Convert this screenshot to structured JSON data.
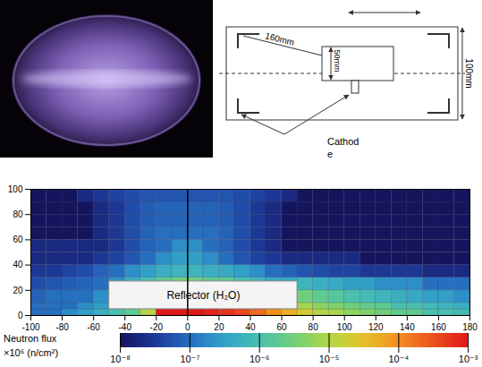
{
  "diagram": {
    "diagonal_label": "160mm",
    "inner_height_label": "50mm",
    "outer_height_label": "100mm",
    "cathode_label": [
      "Cathod",
      "e"
    ]
  },
  "chart_data": {
    "type": "heatmap",
    "xlim": [
      -100,
      180
    ],
    "ylim": [
      0,
      100
    ],
    "xticks": [
      -100,
      -80,
      -60,
      -40,
      -20,
      0,
      20,
      40,
      60,
      80,
      100,
      120,
      140,
      160,
      180
    ],
    "yticks": [
      0,
      20,
      40,
      60,
      80,
      100
    ],
    "grid": true,
    "x_bins": [
      -100,
      -90,
      -80,
      -70,
      -60,
      -50,
      -40,
      -30,
      -20,
      -10,
      0,
      10,
      20,
      30,
      40,
      50,
      60,
      70,
      80,
      90,
      100,
      110,
      120,
      130,
      140,
      150,
      160,
      170,
      180
    ],
    "y_bins": [
      0,
      5,
      10,
      20,
      30,
      40,
      50,
      60,
      70,
      80,
      90,
      100
    ],
    "cells": [
      [
        1e-07,
        1e-07,
        2e-07,
        3e-07,
        5e-07,
        1e-06,
        2e-06,
        1e-05,
        0.001,
        0.001,
        0.001,
        0.0008,
        0.0006,
        0.0004,
        0.0002,
        0.0001,
        5e-05,
        2e-05,
        1e-05,
        8e-06,
        5e-06,
        4e-06,
        3e-06,
        2e-06,
        2e-06,
        1e-06,
        1e-06,
        8e-07
      ],
      [
        1e-07,
        1e-07,
        1e-07,
        2e-07,
        3e-07,
        null,
        null,
        null,
        null,
        null,
        null,
        null,
        null,
        null,
        null,
        null,
        null,
        8e-06,
        5e-06,
        4e-06,
        3e-06,
        2e-06,
        2e-06,
        1e-06,
        1e-06,
        8e-07,
        6e-07,
        5e-07
      ],
      [
        8e-08,
        1e-07,
        1e-07,
        1e-07,
        2e-07,
        null,
        null,
        null,
        null,
        null,
        null,
        null,
        null,
        null,
        null,
        null,
        null,
        3e-06,
        2e-06,
        1.5e-06,
        1e-06,
        8e-07,
        6e-07,
        5e-07,
        4e-07,
        3e-07,
        3e-07,
        2e-07
      ],
      [
        5e-08,
        6e-08,
        7e-08,
        8e-08,
        1e-07,
        2e-07,
        5e-07,
        1e-06,
        2e-06,
        3e-06,
        3e-06,
        2e-06,
        2e-06,
        1e-06,
        6e-07,
        4e-07,
        4e-07,
        6e-07,
        5e-07,
        4e-07,
        3e-07,
        3e-07,
        2e-07,
        2e-07,
        2e-07,
        1e-07,
        1e-07,
        1e-07
      ],
      [
        3e-08,
        3e-08,
        4e-08,
        5e-08,
        8e-08,
        1e-07,
        2e-07,
        3e-07,
        5e-07,
        6e-07,
        6e-07,
        5e-07,
        4e-07,
        3e-07,
        2e-07,
        1e-07,
        8e-08,
        6e-08,
        5e-08,
        4e-08,
        4e-08,
        3e-08,
        3e-08,
        3e-08,
        3e-08,
        2e-08,
        2e-08,
        2e-08
      ],
      [
        2e-08,
        2e-08,
        2e-08,
        2e-08,
        3e-08,
        4e-08,
        6e-08,
        1e-07,
        2e-07,
        3e-07,
        3e-07,
        2e-07,
        1e-07,
        6e-08,
        4e-08,
        3e-08,
        2e-08,
        2e-08,
        2e-08,
        2e-08,
        2e-08,
        1e-08,
        1e-08,
        1e-08,
        1e-08,
        1e-08,
        1e-08,
        1e-08
      ],
      [
        2e-08,
        2e-08,
        2e-08,
        2e-08,
        2e-08,
        3e-08,
        5e-08,
        8e-08,
        1e-07,
        2e-07,
        2e-07,
        1e-07,
        8e-08,
        5e-08,
        3e-08,
        2e-08,
        1e-08,
        1e-08,
        1e-08,
        1e-08,
        1e-08,
        1e-08,
        1e-08,
        1e-08,
        1e-08,
        1e-08,
        1e-08,
        1e-08
      ],
      [
        1e-08,
        1e-08,
        1e-08,
        1e-08,
        2e-08,
        3e-08,
        5e-08,
        8e-08,
        1e-07,
        1e-07,
        1e-07,
        1e-07,
        8e-08,
        5e-08,
        3e-08,
        2e-08,
        1e-08,
        1e-08,
        1e-08,
        1e-08,
        1e-08,
        1e-08,
        1e-08,
        1e-08,
        1e-08,
        1e-08,
        1e-08,
        1e-08
      ],
      [
        1e-08,
        1e-08,
        1e-08,
        1e-08,
        2e-08,
        3e-08,
        5e-08,
        7e-08,
        8e-08,
        8e-08,
        8e-08,
        8e-08,
        7e-08,
        5e-08,
        3e-08,
        2e-08,
        1e-08,
        1e-08,
        1e-08,
        1e-08,
        1e-08,
        1e-08,
        1e-08,
        1e-08,
        1e-08,
        1e-08,
        1e-08,
        1e-08
      ],
      [
        1e-08,
        1e-08,
        1e-08,
        1e-08,
        2e-08,
        3e-08,
        5e-08,
        7e-08,
        8e-08,
        8e-08,
        8e-08,
        8e-08,
        7e-08,
        5e-08,
        3e-08,
        2e-08,
        1e-08,
        1e-08,
        1e-08,
        1e-08,
        1e-08,
        1e-08,
        1e-08,
        1e-08,
        1e-08,
        1e-08,
        1e-08,
        1e-08
      ],
      [
        1e-08,
        1e-08,
        1e-08,
        2e-08,
        3e-08,
        4e-08,
        5e-08,
        6e-08,
        6e-08,
        6e-08,
        6e-08,
        6e-08,
        6e-08,
        5e-08,
        4e-08,
        3e-08,
        2e-08,
        1e-08,
        1e-08,
        1e-08,
        1e-08,
        1e-08,
        1e-08,
        1e-08,
        1e-08,
        1e-08,
        1e-08,
        1e-08
      ]
    ],
    "annotations": [
      {
        "text": "Reflector (H₂O)",
        "x": [
          -50,
          70
        ],
        "y": [
          5,
          27
        ]
      }
    ],
    "vline": 0,
    "colorbar": {
      "label": [
        "Neutron flux",
        "×10⁶ (n/cm²)"
      ],
      "log": true,
      "range": [
        1e-08,
        0.001
      ],
      "ticks": [
        {
          "value": 1e-08,
          "label": "10⁻⁸"
        },
        {
          "value": 1e-07,
          "label": "10⁻⁷"
        },
        {
          "value": 1e-06,
          "label": "10⁻⁶"
        },
        {
          "value": 1e-05,
          "label": "10⁻⁵"
        },
        {
          "value": 0.0001,
          "label": "10⁻⁴"
        },
        {
          "value": 0.001,
          "label": "10⁻³"
        }
      ]
    }
  }
}
